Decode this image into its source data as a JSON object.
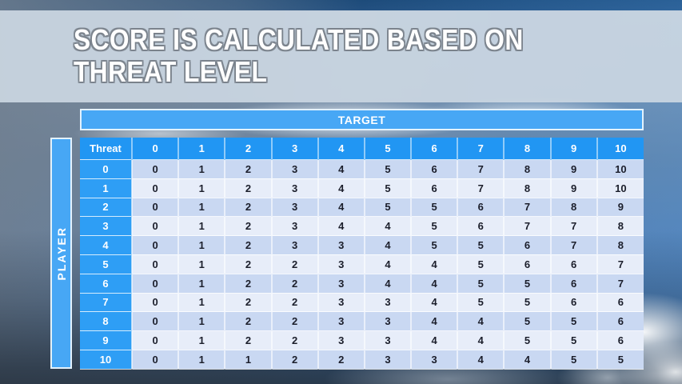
{
  "title": {
    "line1": "SCORE IS CALCULATED BASED ON",
    "line2": "THREAT LEVEL"
  },
  "axes": {
    "column_axis_label": "TARGET",
    "row_axis_label": "PLAYER"
  },
  "chart_data": {
    "type": "table",
    "title": "Score matrix: player threat level vs target threat level",
    "x_axis_label": "TARGET",
    "y_axis_label": "PLAYER",
    "corner_label": "Threat",
    "columns": [
      "0",
      "1",
      "2",
      "3",
      "4",
      "5",
      "6",
      "7",
      "8",
      "9",
      "10"
    ],
    "row_headers": [
      "0",
      "1",
      "2",
      "3",
      "4",
      "5",
      "6",
      "7",
      "8",
      "9",
      "10"
    ],
    "values": [
      [
        0,
        1,
        2,
        3,
        4,
        5,
        6,
        7,
        8,
        9,
        10
      ],
      [
        0,
        1,
        2,
        3,
        4,
        5,
        6,
        7,
        8,
        9,
        10
      ],
      [
        0,
        1,
        2,
        3,
        4,
        5,
        5,
        6,
        7,
        8,
        9
      ],
      [
        0,
        1,
        2,
        3,
        4,
        4,
        5,
        6,
        7,
        7,
        8
      ],
      [
        0,
        1,
        2,
        3,
        3,
        4,
        5,
        5,
        6,
        7,
        8
      ],
      [
        0,
        1,
        2,
        2,
        3,
        4,
        4,
        5,
        6,
        6,
        7
      ],
      [
        0,
        1,
        2,
        2,
        3,
        4,
        4,
        5,
        5,
        6,
        7
      ],
      [
        0,
        1,
        2,
        2,
        3,
        3,
        4,
        5,
        5,
        6,
        6
      ],
      [
        0,
        1,
        2,
        2,
        3,
        3,
        4,
        4,
        5,
        5,
        6
      ],
      [
        0,
        1,
        2,
        2,
        3,
        3,
        4,
        4,
        5,
        5,
        6
      ],
      [
        0,
        1,
        1,
        2,
        2,
        3,
        3,
        4,
        4,
        5,
        5
      ]
    ]
  },
  "colors": {
    "banner_blue": "#47a7f5",
    "header_blue": "#2196f3",
    "row_header_blue": "#2e9ef5",
    "row_even_fill": "#c9d8f2",
    "row_odd_fill": "#e7edf9",
    "cell_text": "#1b1e2b",
    "title_text": "#ffffff"
  }
}
